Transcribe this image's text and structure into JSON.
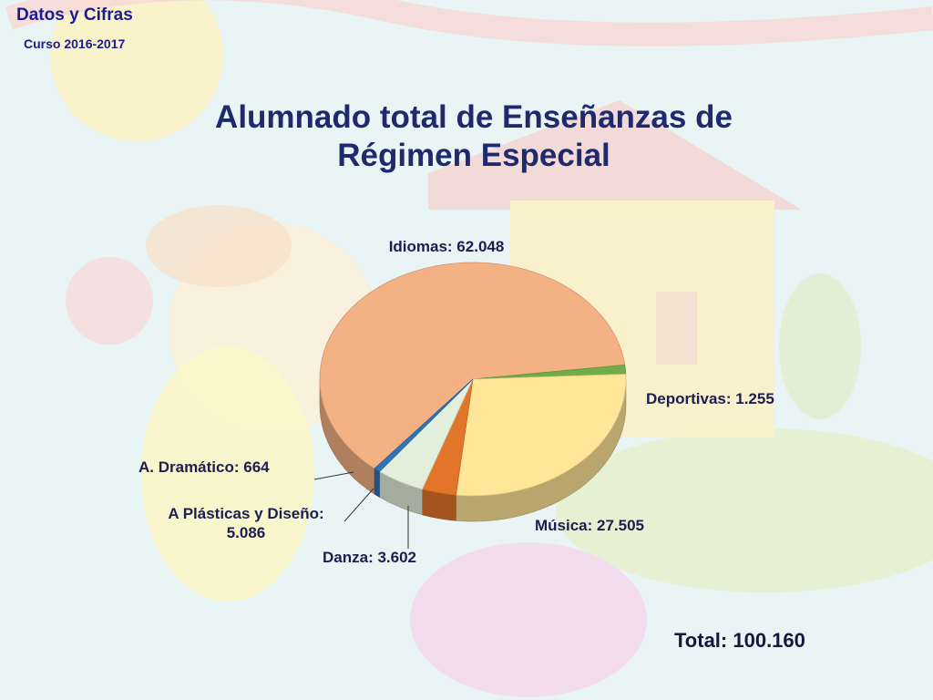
{
  "header": {
    "title": "Datos y Cifras",
    "subtitle": "Curso 2016-2017"
  },
  "chart_data": {
    "type": "pie",
    "title": "Alumnado total de Enseñanzas de Régimen Especial",
    "title_lines": [
      "Alumnado total de Enseñanzas de",
      "Régimen Especial"
    ],
    "slices": [
      {
        "label": "Idiomas",
        "value": 62048,
        "value_text": "62.048",
        "color": "#f4b183"
      },
      {
        "label": "Deportivas",
        "value": 1255,
        "value_text": "1.255",
        "color": "#70ad47"
      },
      {
        "label": "Música",
        "value": 27505,
        "value_text": "27.505",
        "color": "#ffe699"
      },
      {
        "label": "Danza",
        "value": 3602,
        "value_text": "3.602",
        "color": "#e3752b"
      },
      {
        "label": "A Plásticas y Diseño",
        "value": 5086,
        "value_text": "5.086",
        "color": "#e2efda"
      },
      {
        "label": "A. Dramático",
        "value": 664,
        "value_text": "664",
        "color": "#2e75b6"
      }
    ],
    "total_text": "Total: 100.160"
  }
}
